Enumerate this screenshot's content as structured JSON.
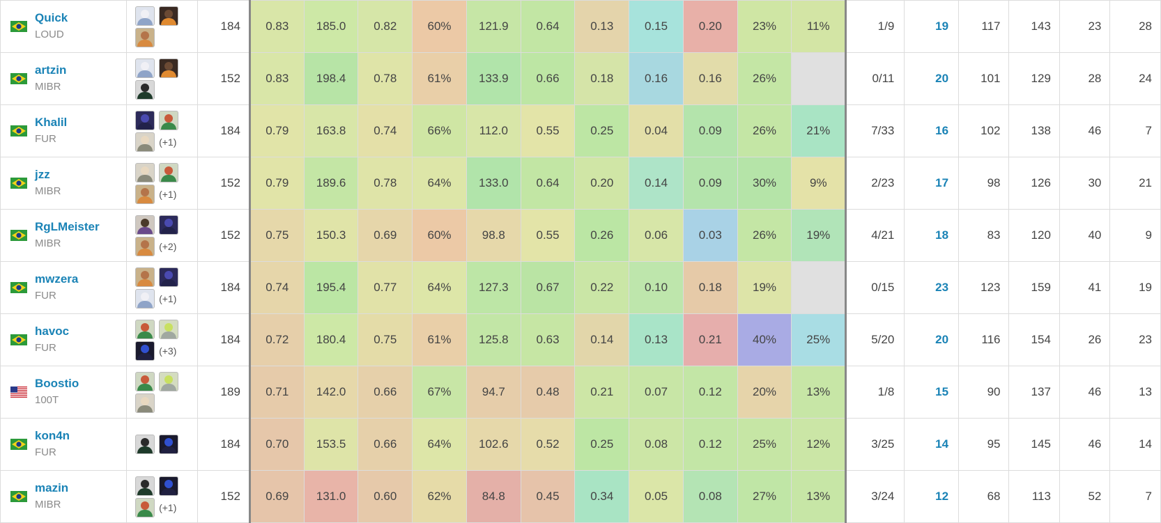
{
  "rows": [
    {
      "name": "Quick",
      "team": "LOUD",
      "flag": "br",
      "agents": [
        "jett",
        "raze",
        "breach"
      ],
      "extra": "",
      "rnd": "184",
      "stats": [
        "0.83",
        "185.0",
        "0.82",
        "60%",
        "121.9",
        "0.64",
        "0.13",
        "0.15",
        "0.20",
        "23%",
        "11%"
      ],
      "colors": [
        "#d9e6a8",
        "#cde8a6",
        "#d6e6a8",
        "#ecc9a6",
        "#c6e6a6",
        "#c2e6a4",
        "#e4d4ab",
        "#a7e3dc",
        "#e8b0a8",
        "#cfe6a4",
        "#d3e5a5"
      ],
      "cl": "1/9",
      "k": "19",
      "d": "117",
      "a": "143",
      "fk": "23",
      "fd": "28"
    },
    {
      "name": "artzin",
      "team": "MIBR",
      "flag": "br",
      "agents": [
        "jett",
        "raze",
        "viper"
      ],
      "extra": "",
      "rnd": "152",
      "stats": [
        "0.83",
        "198.4",
        "0.78",
        "61%",
        "133.9",
        "0.66",
        "0.18",
        "0.16",
        "0.16",
        "26%",
        ""
      ],
      "colors": [
        "#d9e6a8",
        "#b7e4a6",
        "#dfe4a8",
        "#e9cfa8",
        "#b1e4aa",
        "#bde6a4",
        "#d5e4a8",
        "#a8d8e0",
        "#e2dcaa",
        "#c4e6a5",
        "#e0e0e0"
      ],
      "cl": "0/11",
      "k": "20",
      "d": "101",
      "a": "129",
      "fk": "28",
      "fd": "24"
    },
    {
      "name": "Khalil",
      "team": "FUR",
      "flag": "br",
      "agents": [
        "omen",
        "skye",
        "sova"
      ],
      "extra": "(+1)",
      "rnd": "184",
      "stats": [
        "0.79",
        "163.8",
        "0.74",
        "66%",
        "112.0",
        "0.55",
        "0.25",
        "0.04",
        "0.09",
        "26%",
        "21%"
      ],
      "colors": [
        "#e1e4a8",
        "#d8e6a8",
        "#e4e0a8",
        "#cfe6a4",
        "#d8e6a8",
        "#e3e4a8",
        "#bde6a4",
        "#e3dfa8",
        "#b4e4ac",
        "#c4e6a5",
        "#a9e4c4"
      ],
      "cl": "7/33",
      "k": "16",
      "d": "102",
      "a": "138",
      "fk": "46",
      "fd": "7"
    },
    {
      "name": "jzz",
      "team": "MIBR",
      "flag": "br",
      "agents": [
        "sova",
        "skye",
        "breach"
      ],
      "extra": "(+1)",
      "rnd": "152",
      "stats": [
        "0.79",
        "189.6",
        "0.78",
        "64%",
        "133.0",
        "0.64",
        "0.20",
        "0.14",
        "0.09",
        "30%",
        "9%"
      ],
      "colors": [
        "#e1e4a8",
        "#c4e6a5",
        "#dfe4a8",
        "#dde6a8",
        "#b1e4aa",
        "#c2e6a4",
        "#d0e6a6",
        "#aee4c8",
        "#b4e4ac",
        "#b5e4a8",
        "#e4e2a8"
      ],
      "cl": "2/23",
      "k": "17",
      "d": "98",
      "a": "126",
      "fk": "30",
      "fd": "21"
    },
    {
      "name": "RgLMeister",
      "team": "MIBR",
      "flag": "br",
      "agents": [
        "astra",
        "omen",
        "breach"
      ],
      "extra": "(+2)",
      "rnd": "152",
      "stats": [
        "0.75",
        "150.3",
        "0.69",
        "60%",
        "98.8",
        "0.55",
        "0.26",
        "0.06",
        "0.03",
        "26%",
        "19%"
      ],
      "colors": [
        "#e6d8aa",
        "#e0e4a8",
        "#e6d6aa",
        "#ecc9a6",
        "#e6d8aa",
        "#e3e4a8",
        "#bbe6a4",
        "#d7e6a8",
        "#a9d2e6",
        "#c4e6a5",
        "#b1e4b8"
      ],
      "cl": "4/21",
      "k": "18",
      "d": "83",
      "a": "120",
      "fk": "40",
      "fd": "9"
    },
    {
      "name": "mwzera",
      "team": "FUR",
      "flag": "br",
      "agents": [
        "breach",
        "omen",
        "jett"
      ],
      "extra": "(+1)",
      "rnd": "184",
      "stats": [
        "0.74",
        "195.4",
        "0.77",
        "64%",
        "127.3",
        "0.67",
        "0.22",
        "0.10",
        "0.18",
        "19%",
        ""
      ],
      "colors": [
        "#e6d6aa",
        "#bbe6a4",
        "#e1e2a8",
        "#dde6a8",
        "#bde6a6",
        "#bae4a4",
        "#cae6a6",
        "#bee6ac",
        "#e6caa8",
        "#dde4a8",
        "#e0e0e0"
      ],
      "cl": "0/15",
      "k": "23",
      "d": "123",
      "a": "159",
      "fk": "41",
      "fd": "19"
    },
    {
      "name": "havoc",
      "team": "FUR",
      "flag": "br",
      "agents": [
        "skye",
        "kayo",
        "neon"
      ],
      "extra": "(+3)",
      "rnd": "184",
      "stats": [
        "0.72",
        "180.4",
        "0.75",
        "61%",
        "125.8",
        "0.63",
        "0.14",
        "0.13",
        "0.21",
        "40%",
        "25%"
      ],
      "colors": [
        "#e6cfaa",
        "#cde8a6",
        "#e4dca8",
        "#e9cfa8",
        "#c2e6a6",
        "#c6e6a4",
        "#e2d6aa",
        "#a9e4c8",
        "#e6aeac",
        "#a9abe4",
        "#a9dde4"
      ],
      "cl": "5/20",
      "k": "20",
      "d": "116",
      "a": "154",
      "fk": "26",
      "fd": "23"
    },
    {
      "name": "Boostio",
      "team": "100T",
      "flag": "us",
      "agents": [
        "skye",
        "kayo",
        "sova"
      ],
      "extra": "",
      "rnd": "189",
      "stats": [
        "0.71",
        "142.0",
        "0.66",
        "67%",
        "94.7",
        "0.48",
        "0.21",
        "0.07",
        "0.12",
        "20%",
        "13%"
      ],
      "colors": [
        "#e6cbaa",
        "#e6d8aa",
        "#e6d0aa",
        "#c8e6a6",
        "#e6cdaa",
        "#e6cbaa",
        "#cde6a6",
        "#c8e6a6",
        "#c3e6a6",
        "#e6d4aa",
        "#c7e6a6"
      ],
      "cl": "1/8",
      "k": "15",
      "d": "90",
      "a": "137",
      "fk": "46",
      "fd": "13"
    },
    {
      "name": "kon4n",
      "team": "FUR",
      "flag": "br",
      "agents": [
        "viper",
        "neon"
      ],
      "extra": "",
      "rnd": "184",
      "stats": [
        "0.70",
        "153.5",
        "0.66",
        "64%",
        "102.6",
        "0.52",
        "0.25",
        "0.08",
        "0.12",
        "25%",
        "12%"
      ],
      "colors": [
        "#e6c7aa",
        "#dee4a8",
        "#e6d0aa",
        "#dde6a8",
        "#e6d8aa",
        "#e6dcaa",
        "#bde6a4",
        "#cce6a6",
        "#c3e6a6",
        "#c6e6a5",
        "#cbe6a6"
      ],
      "cl": "3/25",
      "k": "14",
      "d": "95",
      "a": "145",
      "fk": "46",
      "fd": "14"
    },
    {
      "name": "mazin",
      "team": "MIBR",
      "flag": "br",
      "agents": [
        "viper",
        "neon",
        "skye"
      ],
      "extra": "(+1)",
      "rnd": "152",
      "stats": [
        "0.69",
        "131.0",
        "0.60",
        "62%",
        "84.8",
        "0.45",
        "0.34",
        "0.05",
        "0.08",
        "27%",
        "13%"
      ],
      "colors": [
        "#e6c5aa",
        "#e8b4a8",
        "#e6c9aa",
        "#e6dba8",
        "#e4b0a8",
        "#e6c3aa",
        "#a9e4c4",
        "#dbe6a8",
        "#b4e4b4",
        "#c0e6a6",
        "#c7e6a6"
      ],
      "cl": "3/24",
      "k": "12",
      "d": "68",
      "a": "113",
      "fk": "52",
      "fd": "7"
    }
  ],
  "agent_colors": {
    "jett": {
      "bg": "#dfe4ee",
      "head": "#f0f0f5",
      "body": "#8fa4c8"
    },
    "raze": {
      "bg": "#3a2a22",
      "head": "#6b4a34",
      "body": "#e08a30"
    },
    "breach": {
      "bg": "#c9b28a",
      "head": "#b4744a",
      "body": "#d88a40"
    },
    "viper": {
      "bg": "#d8d8d8",
      "head": "#2a2a2a",
      "body": "#1e3a2a"
    },
    "omen": {
      "bg": "#2c2a5a",
      "head": "#4a4ab0",
      "body": "#22224a"
    },
    "skye": {
      "bg": "#cfd8c2",
      "head": "#c85a3a",
      "body": "#3a8a4a"
    },
    "sova": {
      "bg": "#d9d4c8",
      "head": "#e8d8c0",
      "body": "#8a8a7a"
    },
    "astra": {
      "bg": "#cfc8c0",
      "head": "#4a3a2a",
      "body": "#6a4a8a"
    },
    "kayo": {
      "bg": "#d4dcc0",
      "head": "#c8e060",
      "body": "#a0a8a0"
    },
    "neon": {
      "bg": "#1a1a2e",
      "head": "#3050d0",
      "body": "#202040"
    }
  },
  "flag_colors": {
    "br_green": "#2c9a3a",
    "br_yellow": "#f2d21a",
    "br_blue": "#1a3a8a",
    "us_red": "#c8202a",
    "us_blue": "#2a3a8a"
  }
}
